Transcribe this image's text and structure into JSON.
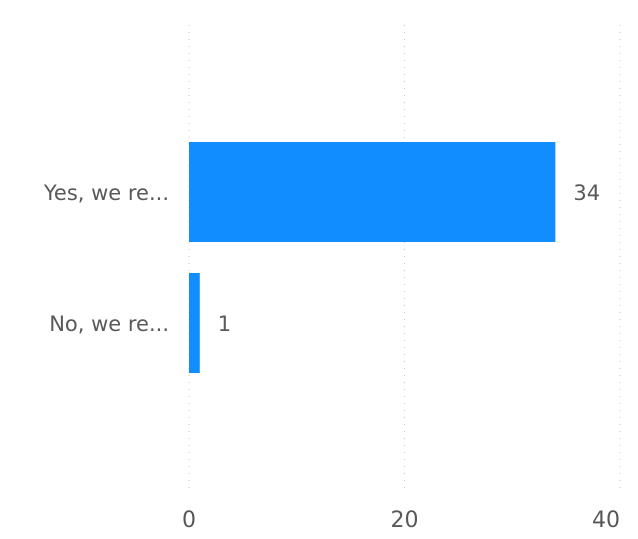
{
  "chart_data": {
    "type": "bar",
    "orientation": "horizontal",
    "categories": [
      "Yes, we re...",
      "No, we re..."
    ],
    "values": [
      34,
      1
    ],
    "xlim": [
      0,
      40
    ],
    "xticks": [
      "0",
      "20",
      "40"
    ],
    "data_labels": [
      "34",
      "1"
    ],
    "grid": true,
    "grid_style": "dotted",
    "bar_color": "#118DFF",
    "label_color": "#595959"
  }
}
